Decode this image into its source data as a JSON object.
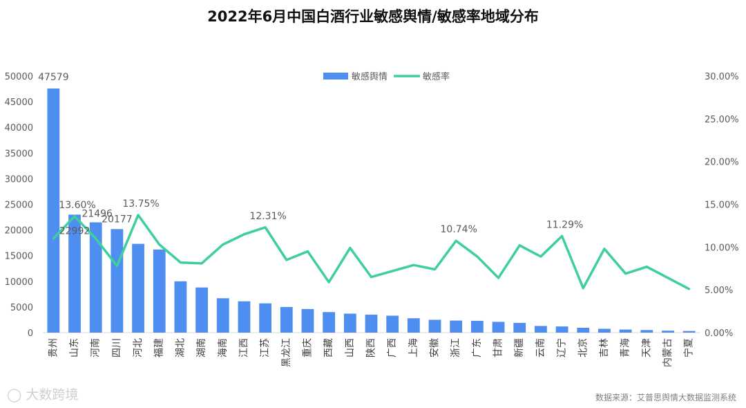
{
  "chart_data": {
    "type": "bar",
    "title": "2022年6月中国白酒行业敏感舆情/敏感率地域分布",
    "categories": [
      "贵州",
      "山东",
      "河南",
      "四川",
      "河北",
      "福建",
      "湖北",
      "湖南",
      "海南",
      "江西",
      "江苏",
      "黑龙江",
      "重庆",
      "西藏",
      "山西",
      "陕西",
      "广西",
      "上海",
      "安徽",
      "浙江",
      "广东",
      "甘肃",
      "新疆",
      "云南",
      "辽宁",
      "北京",
      "吉林",
      "青海",
      "天津",
      "内蒙古",
      "宁夏"
    ],
    "series": [
      {
        "name": "敏感舆情",
        "type": "bar",
        "axis": "left",
        "color": "#4e8ef0",
        "values": [
          47579,
          22992,
          21496,
          20177,
          17300,
          16200,
          10000,
          8800,
          6700,
          6100,
          5700,
          5000,
          4600,
          4000,
          3700,
          3500,
          3300,
          2800,
          2500,
          2350,
          2300,
          2100,
          1900,
          1300,
          1200,
          950,
          750,
          600,
          500,
          380,
          320
        ],
        "labels": [
          "47579",
          "22992",
          "21496",
          "20177",
          "",
          "",
          "",
          "",
          "",
          "",
          "",
          "",
          "",
          "",
          "",
          "",
          "",
          "",
          "",
          "",
          "",
          "",
          "",
          "",
          "",
          "",
          "",
          "",
          "",
          "",
          ""
        ]
      },
      {
        "name": "敏感率",
        "type": "line",
        "axis": "right",
        "color": "#3ecf9c",
        "values": [
          11.0,
          13.6,
          11.0,
          7.8,
          13.75,
          10.3,
          8.2,
          8.1,
          10.3,
          11.5,
          12.31,
          8.5,
          9.5,
          5.9,
          9.9,
          6.5,
          7.2,
          7.9,
          7.4,
          10.74,
          8.9,
          6.4,
          10.2,
          8.9,
          11.29,
          5.2,
          9.8,
          6.9,
          7.7,
          6.4,
          5.1
        ],
        "labels": [
          "",
          "13.60%",
          "",
          "",
          "13.75%",
          "",
          "",
          "",
          "",
          "",
          "12.31%",
          "",
          "",
          "",
          "",
          "",
          "",
          "",
          "",
          "10.74%",
          "",
          "",
          "",
          "",
          "11.29%",
          "",
          "",
          "",
          "",
          "",
          ""
        ]
      }
    ],
    "y_left": {
      "min": 0,
      "max": 50000,
      "ticks": [
        "0",
        "5000",
        "10000",
        "15000",
        "20000",
        "25000",
        "30000",
        "35000",
        "40000",
        "45000",
        "50000"
      ]
    },
    "y_right": {
      "min": 0,
      "max": 30,
      "ticks": [
        "0.00%",
        "5.00%",
        "10.00%",
        "15.00%",
        "20.00%",
        "25.00%",
        "30.00%"
      ]
    },
    "legend": {
      "position": "top-center",
      "items": [
        "敏感舆情",
        "敏感率"
      ]
    },
    "grid": false
  },
  "source_text": "数据来源：艾普思舆情大数据监测系统",
  "watermark_text": "大数跨境"
}
